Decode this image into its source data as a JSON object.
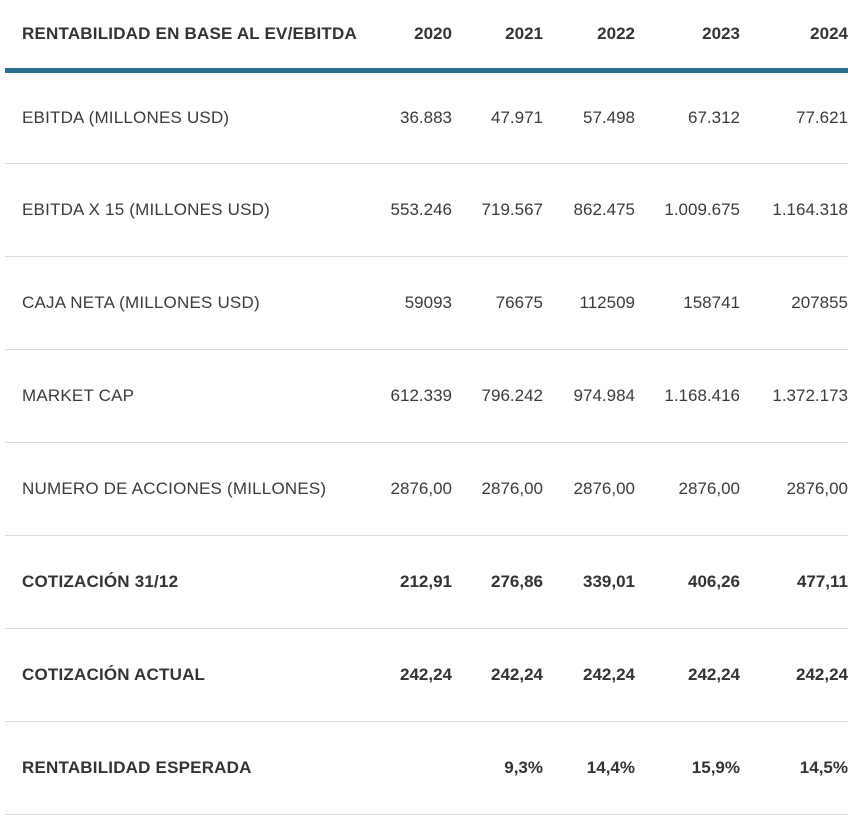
{
  "chart_data": {
    "type": "table",
    "title": "RENTABILIDAD EN BASE AL EV/EBITDA",
    "columns": [
      "2020",
      "2021",
      "2022",
      "2023",
      "2024"
    ],
    "rows": [
      {
        "label": "EBITDA (MILLONES USD)",
        "values": [
          "36.883",
          "47.971",
          "57.498",
          "67.312",
          "77.621"
        ],
        "bold": false
      },
      {
        "label": "EBITDA X 15 (MILLONES USD)",
        "values": [
          "553.246",
          "719.567",
          "862.475",
          "1.009.675",
          "1.164.318"
        ],
        "bold": false
      },
      {
        "label": "CAJA NETA (MILLONES USD)",
        "values": [
          "59093",
          "76675",
          "112509",
          "158741",
          "207855"
        ],
        "bold": false
      },
      {
        "label": "MARKET CAP",
        "values": [
          "612.339",
          "796.242",
          "974.984",
          "1.168.416",
          "1.372.173"
        ],
        "bold": false
      },
      {
        "label": "NUMERO DE ACCIONES (MILLONES)",
        "values": [
          "2876,00",
          "2876,00",
          "2876,00",
          "2876,00",
          "2876,00"
        ],
        "bold": false
      },
      {
        "label": "COTIZACIÓN 31/12",
        "values": [
          "212,91",
          "276,86",
          "339,01",
          "406,26",
          "477,11"
        ],
        "bold": true
      },
      {
        "label": "COTIZACIÓN ACTUAL",
        "values": [
          "242,24",
          "242,24",
          "242,24",
          "242,24",
          "242,24"
        ],
        "bold": true
      },
      {
        "label": "RENTABILIDAD ESPERADA",
        "values": [
          "",
          "9,3%",
          "14,4%",
          "15,9%",
          "14,5%"
        ],
        "bold": true
      }
    ],
    "layout": {
      "legend": "none",
      "grid": "horizontal-row-dividers"
    }
  },
  "colors": {
    "header_rule": "#2e6e91",
    "row_divider": "#d9d9d9",
    "text": "#3b3b3b",
    "background": "#ffffff"
  }
}
